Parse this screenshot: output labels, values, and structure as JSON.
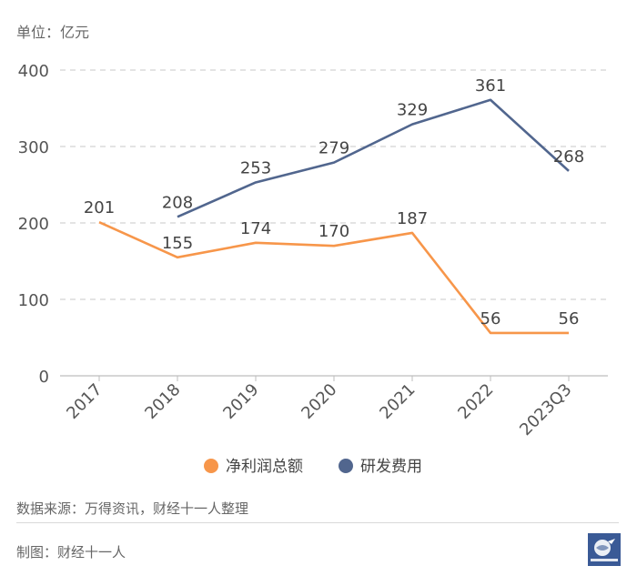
{
  "header": {
    "unit": "单位：亿元"
  },
  "footer": {
    "source": "数据来源：万得资讯，财经十一人整理",
    "credit": "制图：财经十一人"
  },
  "logo": {
    "text": "财经十一人",
    "color": "#3a5a96"
  },
  "chart_data": {
    "type": "line",
    "categories": [
      "2017",
      "2018",
      "2019",
      "2020",
      "2021",
      "2022",
      "2023Q3"
    ],
    "ylim": [
      0,
      400
    ],
    "yticks": [
      0,
      100,
      200,
      300,
      400
    ],
    "grid": true,
    "legend": "bottom",
    "series": [
      {
        "name": "净利润总额",
        "color": "#f7964a",
        "values": [
          201,
          155,
          174,
          170,
          187,
          56,
          56
        ]
      },
      {
        "name": "研发费用",
        "color": "#51668e",
        "values": [
          null,
          208,
          253,
          279,
          329,
          361,
          268
        ]
      }
    ]
  }
}
